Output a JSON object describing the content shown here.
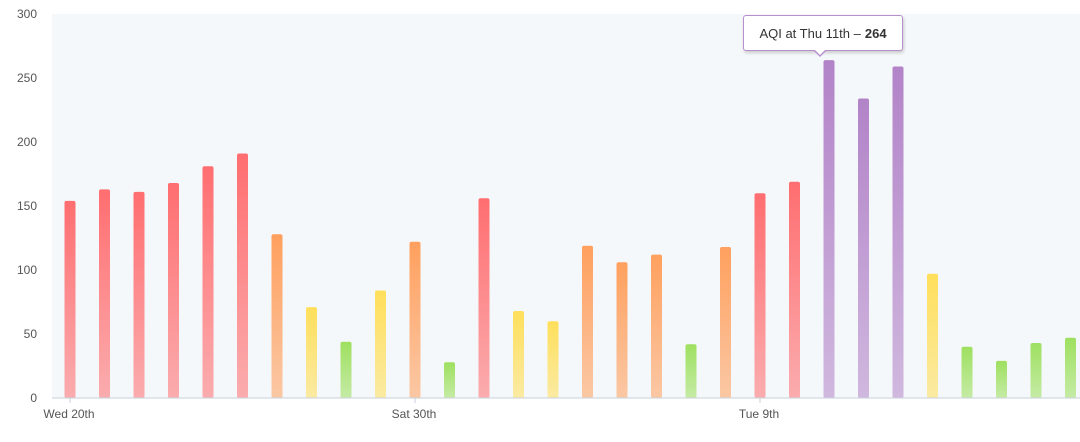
{
  "chart_data": {
    "type": "bar",
    "ylim": [
      0,
      300
    ],
    "yticks": [
      "0",
      "50",
      "100",
      "150",
      "200",
      "250",
      "300"
    ],
    "x_labels": [
      {
        "index": 0,
        "label": "Wed 20th"
      },
      {
        "index": 10,
        "label": "Sat 30th"
      },
      {
        "index": 20,
        "label": "Tue 9th"
      }
    ],
    "values": [
      154,
      163,
      161,
      168,
      181,
      191,
      128,
      71,
      44,
      84,
      122,
      28,
      156,
      68,
      60,
      119,
      106,
      112,
      42,
      118,
      160,
      169,
      264,
      234,
      259,
      97,
      40,
      29,
      43,
      47
    ],
    "colors": {
      "good": "#9ee060",
      "moderate": "#ffdf5b",
      "unhealthy_sensitive": "#ffa05e",
      "unhealthy": "#ff6e70",
      "very_unhealthy": "#b283c8"
    },
    "tooltip": {
      "text": "AQI at Thu 11th –",
      "value": "264",
      "index": 22
    }
  }
}
